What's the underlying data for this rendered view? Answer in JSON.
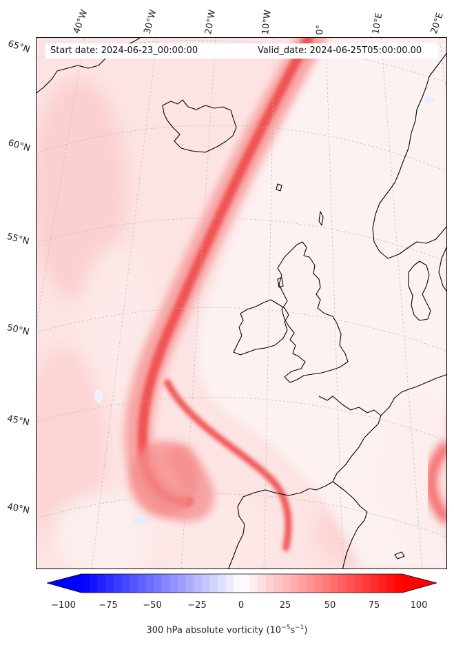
{
  "header": {
    "start_date": "Start date: 2024-06-23_00:00:00",
    "valid_date": "Valid_date: 2024-06-25T05:00:00.00"
  },
  "longitude_labels": [
    "40°W",
    "30°W",
    "20°W",
    "10°W",
    "0°",
    "10°E",
    "20°E"
  ],
  "latitude_labels": [
    "65°N",
    "60°N",
    "55°N",
    "50°N",
    "45°N",
    "40°N"
  ],
  "colorbar": {
    "label_prefix": "300 hPa absolute vorticity (10",
    "label_exp1": "−5",
    "label_mid": "s",
    "label_exp2": "−1",
    "label_suffix": ")",
    "ticks": [
      "−100",
      "−75",
      "−50",
      "−25",
      "0",
      "25",
      "50",
      "75",
      "100"
    ],
    "min": -100,
    "max": 100,
    "low_color": "#0000ff",
    "mid_color": "#ffffff",
    "high_color": "#ff0000"
  },
  "colors": {
    "jet_core": "#f04a4a",
    "background_fill": "#fde2e2",
    "coastline": "#000000",
    "gridline": "#b0b0b0"
  }
}
